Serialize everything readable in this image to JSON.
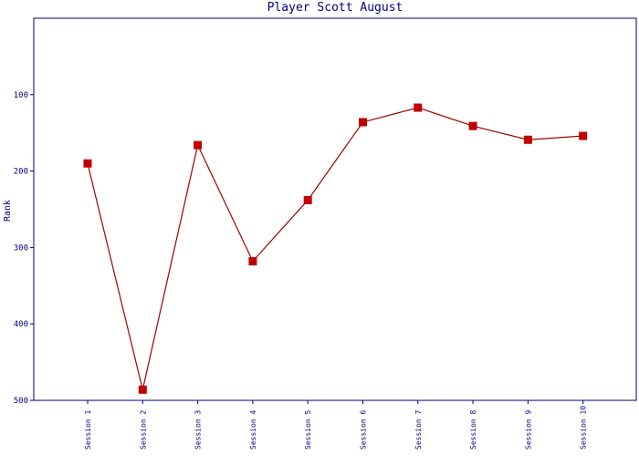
{
  "chart_data": {
    "type": "line",
    "title": "Player Scott August",
    "y_label": "Rank",
    "categories": [
      "Session 1",
      "Session 2",
      "Session 3",
      "Session 4",
      "Session 5",
      "Session 6",
      "Session 7",
      "Session 8",
      "Session 9",
      "Session 10"
    ],
    "series": [
      {
        "name": "Rank",
        "color": "#c00000",
        "values": [
          190,
          486,
          166,
          318,
          238,
          136,
          117,
          141,
          159,
          154
        ]
      }
    ],
    "ylim": [
      500,
      0
    ],
    "yticks": [
      100,
      200,
      300,
      400,
      500
    ]
  }
}
